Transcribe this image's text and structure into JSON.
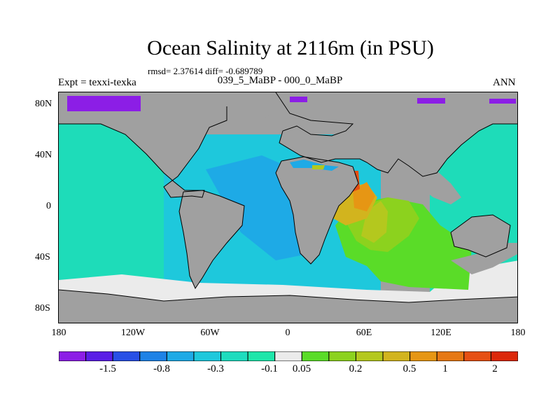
{
  "title": "Ocean Salinity at 2116m (in PSU)",
  "stats": "rmsd= 2.37614 diff= -0.689789",
  "experiment": "Expt = texxi-texka",
  "subtitle": "039_5_MaBP - 000_0_MaBP",
  "season": "ANN",
  "lat_labels": [
    "80N",
    "40N",
    "0",
    "40S",
    "80S"
  ],
  "lon_labels": [
    "180",
    "120W",
    "60W",
    "0",
    "60E",
    "120E",
    "180"
  ],
  "colorbar": {
    "colors": [
      "#8c1ee6",
      "#5a1ee6",
      "#2850e6",
      "#1e82e6",
      "#1eaae6",
      "#1ec8dc",
      "#1edcbe",
      "#1ee6aa",
      "#ebebeb",
      "#5adc28",
      "#8cd21e",
      "#b4c81e",
      "#d2b41e",
      "#e69614",
      "#e67814",
      "#e65014",
      "#dc280a"
    ],
    "labels": [
      "-1.5",
      "-0.8",
      "-0.3",
      "-0.1",
      "0.05",
      "0.2",
      "0.5",
      "1",
      "2"
    ]
  },
  "map_colors": {
    "land": "#a0a0a0",
    "pacific": "#1edcb9",
    "atlantic": "#1ec8dc",
    "atlantic_deep": "#1eaae6",
    "arctic": "#8c1ee6",
    "southern": "#ebebeb",
    "indian_green": "#5adc28",
    "indian_lime": "#8cd21e",
    "indian_yellow": "#b4c81e",
    "arabian": "#d2b41e",
    "arabian_orange": "#e69614",
    "red_sea": "#e65014"
  }
}
